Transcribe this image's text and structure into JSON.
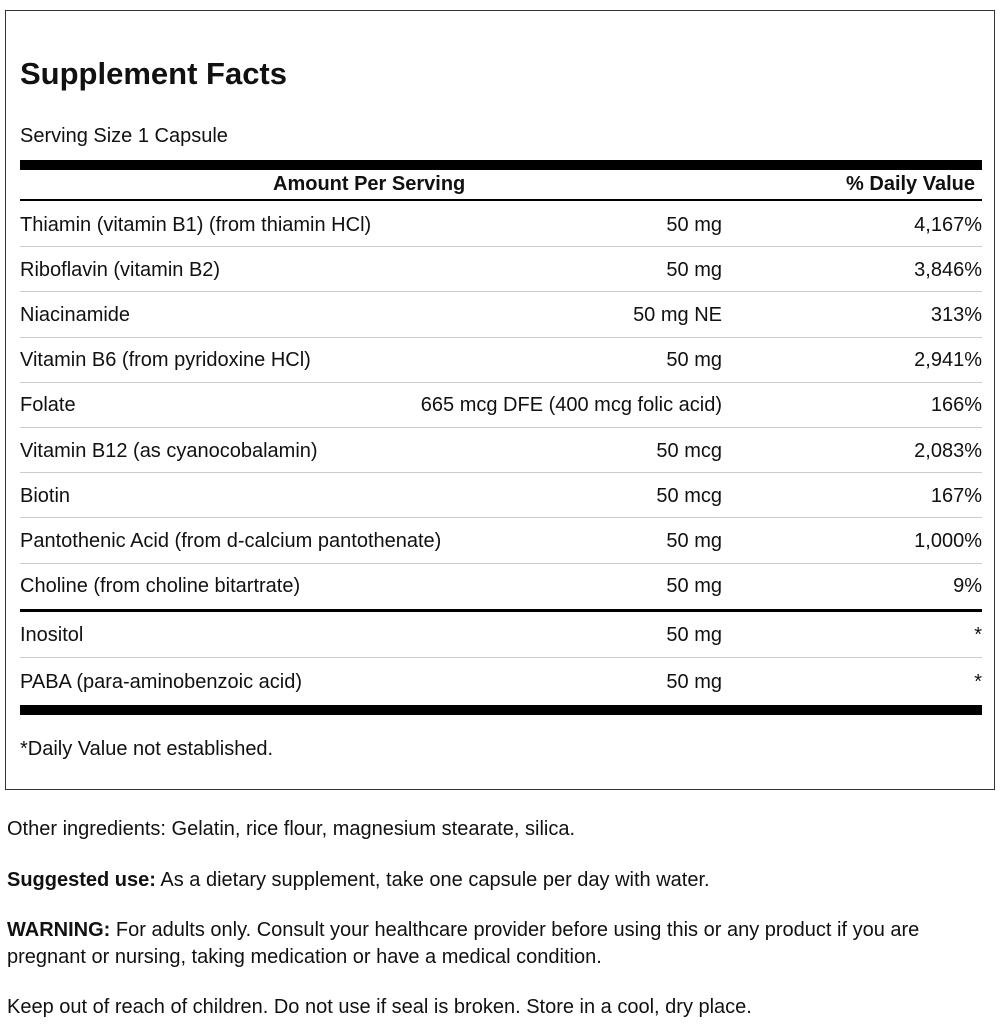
{
  "title": "Supplement Facts",
  "serving_size": "Serving Size 1 Capsule",
  "table": {
    "header": [
      "Amount Per Serving",
      "% Daily Value"
    ],
    "rows": [
      [
        "Thiamin (vitamin B1) (from thiamin HCl)",
        "50 mg",
        "4,167%"
      ],
      [
        "Riboflavin (vitamin B2)",
        "50 mg",
        "3,846%"
      ],
      [
        "Niacinamide",
        "50 mg NE",
        "313%"
      ],
      [
        "Vitamin B6 (from pyridoxine HCl)",
        "50 mg",
        "2,941%"
      ],
      [
        "Folate",
        "665 mcg DFE (400 mcg folic acid)",
        "166%"
      ],
      [
        "Vitamin B12 (as cyanocobalamin)",
        "50 mcg",
        "2,083%"
      ],
      [
        "Biotin",
        "50 mcg",
        "167%"
      ],
      [
        "Pantothenic Acid (from d-calcium pantothenate)",
        "50 mg",
        "1,000%"
      ],
      [
        "Choline (from choline bitartrate)",
        "50 mg",
        "9%"
      ],
      [
        "Inositol",
        "50 mg",
        "*"
      ],
      [
        "PABA (para-aminobenzoic acid)",
        "50 mg",
        "*"
      ]
    ]
  },
  "footnote": "*Daily Value not established.",
  "other_ingredients": "Other ingredients: Gelatin, rice flour, magnesium stearate, silica.",
  "suggested_use": {
    "label": "Suggested use:",
    "text": "As a dietary supplement, take one capsule per day with water."
  },
  "warning": {
    "label": "WARNING:",
    "text": "For adults only. Consult your healthcare provider before using this or any product if you are pregnant or nursing, taking medication or have a medical condition."
  },
  "storage": "Keep out of reach of children. Do not use if seal is broken. Store in a cool, dry place."
}
